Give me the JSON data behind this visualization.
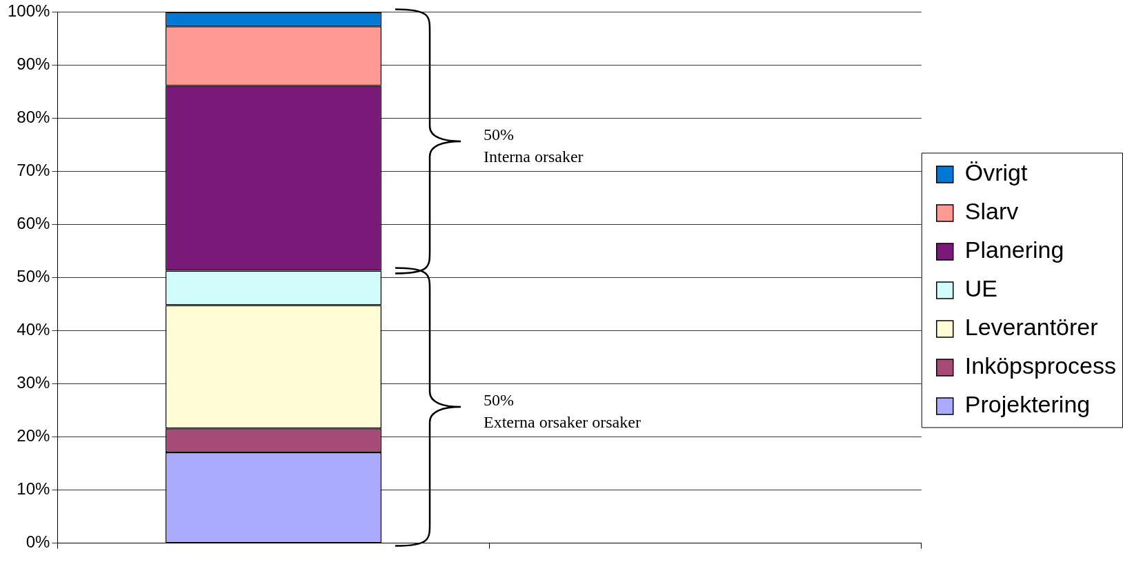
{
  "chart_data": {
    "type": "bar",
    "stacked": true,
    "categories": [
      null,
      null
    ],
    "series": [
      {
        "name": "Projektering",
        "color": "#aaaaff",
        "values": [
          17.1,
          null
        ]
      },
      {
        "name": "Inköpsprocess",
        "color": "#a64a78",
        "values": [
          4.5,
          null
        ]
      },
      {
        "name": "Leverantörer",
        "color": "#fffcd6",
        "values": [
          23.2,
          null
        ]
      },
      {
        "name": "UE",
        "color": "#d2fcfc",
        "values": [
          6.5,
          null
        ]
      },
      {
        "name": "Planering",
        "color": "#7a1a78",
        "values": [
          34.8,
          null
        ]
      },
      {
        "name": "Slarv",
        "color": "#ff9994",
        "values": [
          11.2,
          null
        ]
      },
      {
        "name": "Övrigt",
        "color": "#0078d4",
        "values": [
          2.7,
          null
        ]
      }
    ],
    "ylim": [
      0,
      100
    ],
    "yticks": [
      {
        "value": 0,
        "label": "0%"
      },
      {
        "value": 10,
        "label": "10%"
      },
      {
        "value": 20,
        "label": "20%"
      },
      {
        "value": 30,
        "label": "30%"
      },
      {
        "value": 40,
        "label": "40%"
      },
      {
        "value": 50,
        "label": "50%"
      },
      {
        "value": 60,
        "label": "60%"
      },
      {
        "value": 70,
        "label": "70%"
      },
      {
        "value": 80,
        "label": "80%"
      },
      {
        "value": 90,
        "label": "90%"
      },
      {
        "value": 100,
        "label": "100%"
      }
    ],
    "annotations": [
      "50%\nInterna orsaker",
      "50%\nExterna orsaker orsaker"
    ],
    "grid": "y",
    "legend": "right"
  }
}
